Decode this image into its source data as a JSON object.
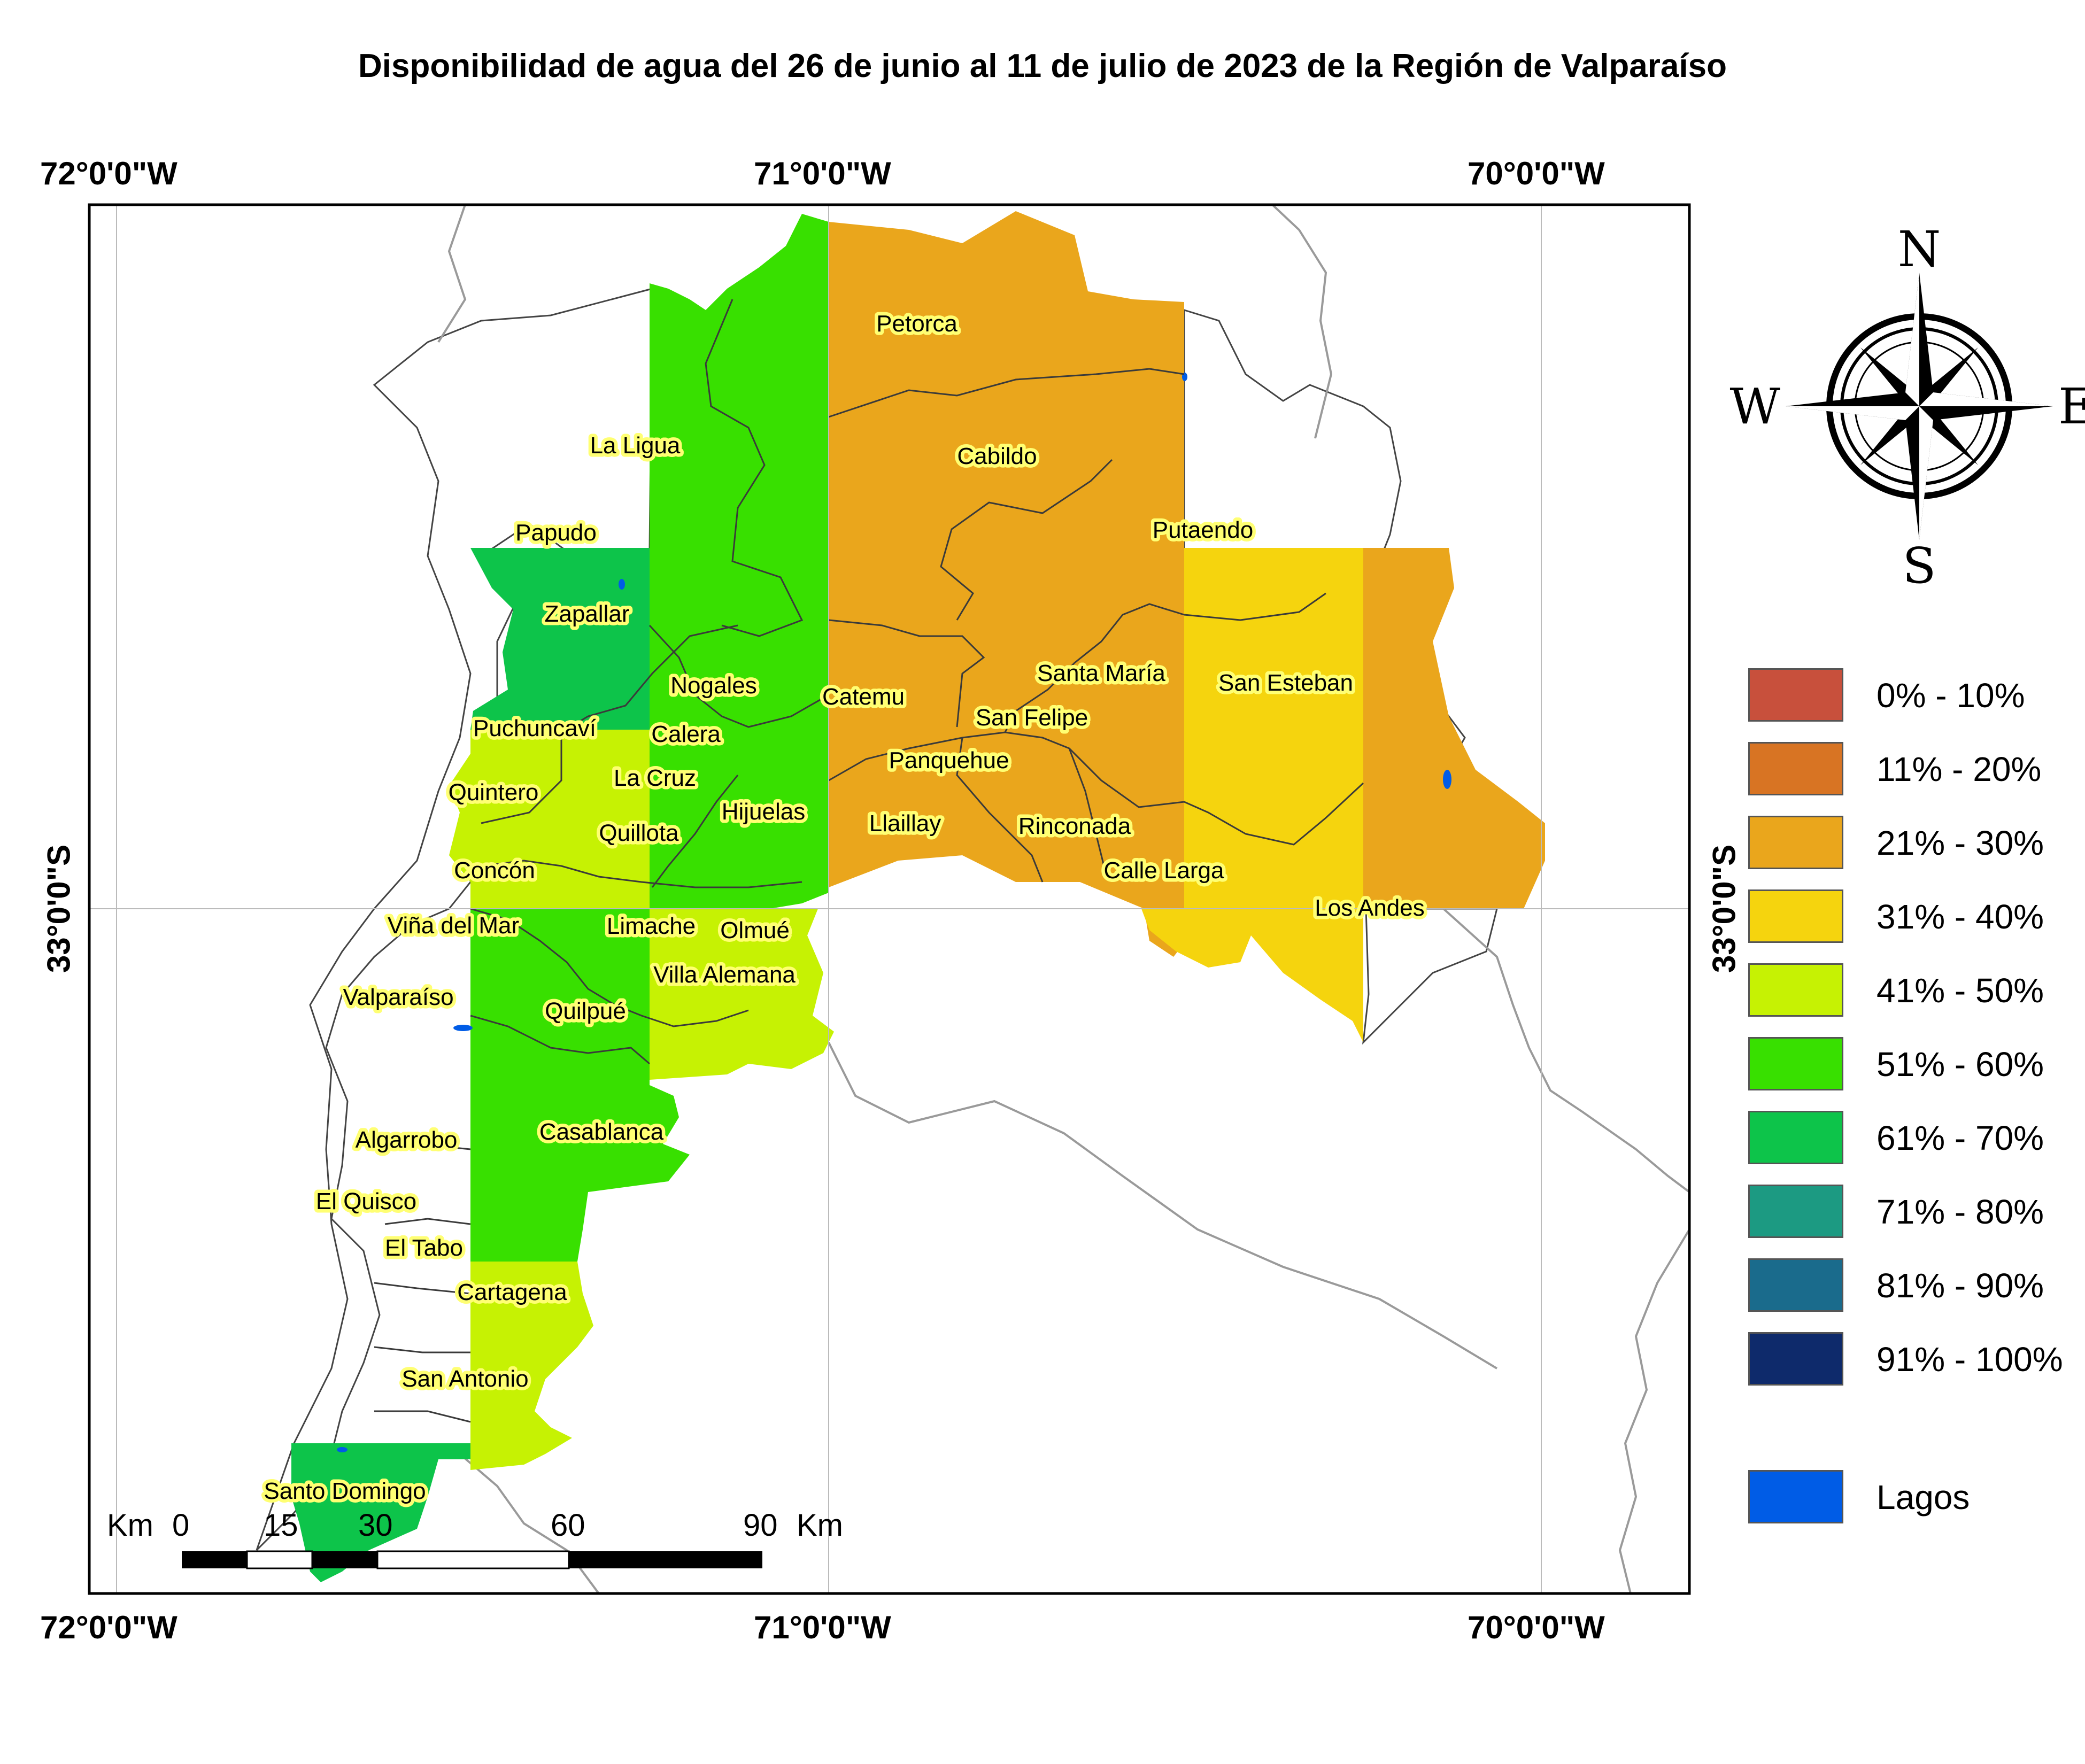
{
  "title": "Disponibilidad de agua del 26 de junio al 11 de julio de 2023 de la Región de Valparaíso",
  "coordinates": {
    "top": [
      "72°0'0\"W",
      "71°0'0\"W",
      "70°0'0\"W"
    ],
    "bottom": [
      "72°0'0\"W",
      "71°0'0\"W",
      "70°0'0\"W"
    ],
    "left": "33°0'0\"S",
    "right": "33°0'0\"S"
  },
  "compass": {
    "n": "N",
    "s": "S",
    "e": "E",
    "w": "W"
  },
  "legend": [
    {
      "label": "0% - 10%",
      "color": "#c8503c"
    },
    {
      "label": "11% - 20%",
      "color": "#d87423"
    },
    {
      "label": "21% - 30%",
      "color": "#eaa61c"
    },
    {
      "label": "31% - 40%",
      "color": "#f5d40e"
    },
    {
      "label": "41% - 50%",
      "color": "#c6f203"
    },
    {
      "label": "51% - 60%",
      "color": "#38e000"
    },
    {
      "label": "61% - 70%",
      "color": "#0dc44a"
    },
    {
      "label": "71% - 80%",
      "color": "#1c9a82"
    },
    {
      "label": "81% - 90%",
      "color": "#1a6b8c"
    },
    {
      "label": "91% - 100%",
      "color": "#0e2a6b"
    }
  ],
  "lakes": {
    "label": "Lagos",
    "color": "#005ce6"
  },
  "scale_bar": {
    "unit_left": "Km",
    "ticks": [
      "0",
      "15",
      "30",
      "60",
      "90"
    ],
    "unit_right": "Km"
  },
  "places": [
    "Petorca",
    "Cabildo",
    "La Ligua",
    "Papudo",
    "Putaendo",
    "Zapallar",
    "Nogales",
    "Catemu",
    "Santa María",
    "San Esteban",
    "Puchuncaví",
    "Calera",
    "San Felipe",
    "Panquehue",
    "Quintero",
    "La Cruz",
    "Hijuelas",
    "Llaillay",
    "Rinconada",
    "Quillota",
    "Concón",
    "Calle Larga",
    "Los Andes",
    "Viña del Mar",
    "Limache",
    "Olmué",
    "Villa Alemana",
    "Valparaíso",
    "Quilpué",
    "Casablanca",
    "Algarrobo",
    "El Quisco",
    "El Tabo",
    "Cartagena",
    "San Antonio",
    "Santo Domingo"
  ]
}
